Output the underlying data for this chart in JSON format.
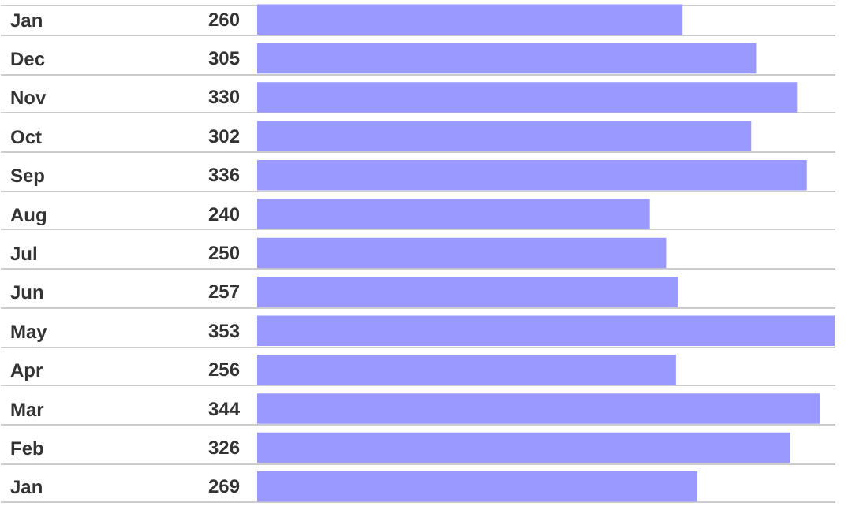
{
  "chart_data": {
    "type": "bar",
    "orientation": "horizontal",
    "categories": [
      "Jan",
      "Dec",
      "Nov",
      "Oct",
      "Sep",
      "Aug",
      "Jul",
      "Jun",
      "May",
      "Apr",
      "Mar",
      "Feb",
      "Jan"
    ],
    "values": [
      260,
      305,
      330,
      302,
      336,
      240,
      250,
      257,
      353,
      256,
      344,
      326,
      269
    ],
    "color": "#9999ff",
    "data_labels": true,
    "grid": true
  }
}
